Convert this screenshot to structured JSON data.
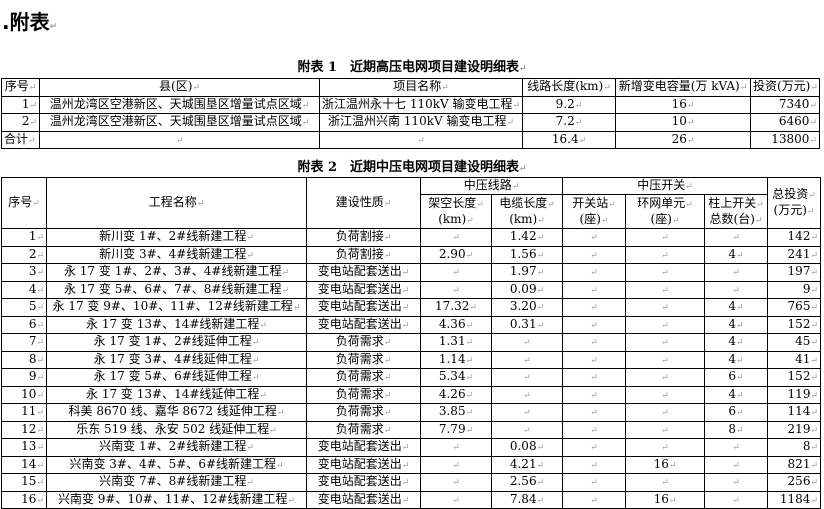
{
  "heading": ".附表",
  "table1": {
    "caption": "附表 1　近期高压电网项目建设明细表",
    "headers": [
      "序号",
      "县(区)",
      "项目名称",
      "线路长度(km)",
      "新增变电容量(万 kVA)",
      "投资(万元)"
    ],
    "rows": [
      [
        "1",
        "温州龙湾区空港新区、天城围垦区增量试点区域",
        "浙江温州永十七 110kV 输变电工程",
        "9.2",
        "16",
        "7340"
      ],
      [
        "2",
        "温州龙湾区空港新区、天城围垦区增量试点区域",
        "浙江温州兴南 110kV 输变电工程",
        "7.2",
        "10",
        "6460"
      ],
      [
        "合计",
        "",
        "",
        "16.4",
        "26",
        "13800"
      ]
    ]
  },
  "table2": {
    "caption": "附表 2　近期中压电网项目建设明细表",
    "headers": {
      "seq": "序号",
      "name": "工程名称",
      "nature": "建设性质",
      "line_group": "中压线路",
      "switch_group": "中压开关",
      "overhead": "架空长度",
      "overhead_unit": "(km)",
      "cable": "电缆长度",
      "cable_unit": "(km)",
      "station": "开关站",
      "station_unit": "(座)",
      "ring": "环网单元",
      "ring_unit": "(座)",
      "pole": "柱上开关",
      "pole_unit": "总数(台)",
      "total": "总投资",
      "total_unit": "(万元)"
    },
    "rows": [
      [
        "1",
        "新川变 1#、2#线新建工程",
        "负荷割接",
        "",
        "1.42",
        "",
        "",
        "",
        "142"
      ],
      [
        "2",
        "新川变 3#、4#线新建工程",
        "负荷割接",
        "2.90",
        "1.56",
        "",
        "",
        "4",
        "241"
      ],
      [
        "3",
        "永 17 变 1#、2#、3#、4#线新建工程",
        "变电站配套送出",
        "",
        "1.97",
        "",
        "",
        "",
        "197"
      ],
      [
        "4",
        "永 17 变 5#、6#、7#、8#线新建工程",
        "变电站配套送出",
        "",
        "0.09",
        "",
        "",
        "",
        "9"
      ],
      [
        "5",
        "永 17 变 9#、10#、11#、12#线新建工程",
        "变电站配套送出",
        "17.32",
        "3.20",
        "",
        "",
        "4",
        "765"
      ],
      [
        "6",
        "永 17 变 13#、14#线新建工程",
        "变电站配套送出",
        "4.36",
        "0.31",
        "",
        "",
        "4",
        "152"
      ],
      [
        "7",
        "永 17 变 1#、2#线延伸工程",
        "负荷需求",
        "1.31",
        "",
        "",
        "",
        "4",
        "45"
      ],
      [
        "8",
        "永 17 变 3#、4#线延伸工程",
        "负荷需求",
        "1.14",
        "",
        "",
        "",
        "4",
        "41"
      ],
      [
        "9",
        "永 17 变 5#、6#线延伸工程",
        "负荷需求",
        "5.34",
        "",
        "",
        "",
        "6",
        "152"
      ],
      [
        "10",
        "永 17 变 13#、14#线延伸工程",
        "负荷需求",
        "4.26",
        "",
        "",
        "",
        "4",
        "119"
      ],
      [
        "11",
        "科美 8670 线、嘉华 8672 线延伸工程",
        "负荷需求",
        "3.85",
        "",
        "",
        "",
        "6",
        "114"
      ],
      [
        "12",
        "乐东 519 线、永安 502 线延伸工程",
        "负荷需求",
        "7.79",
        "",
        "",
        "",
        "8",
        "219"
      ],
      [
        "13",
        "兴南变 1#、2#线新建工程",
        "变电站配套送出",
        "",
        "0.08",
        "",
        "",
        "",
        "8"
      ],
      [
        "14",
        "兴南变 3#、4#、5#、6#线新建工程",
        "变电站配套送出",
        "",
        "4.21",
        "",
        "16",
        "",
        "821"
      ],
      [
        "15",
        "兴南变 7#、8#线新建工程",
        "变电站配套送出",
        "",
        "2.56",
        "",
        "",
        "",
        "256"
      ],
      [
        "16",
        "兴南变 9#、10#、11#、12#线新建工程",
        "变电站配套送出",
        "",
        "7.84",
        "",
        "16",
        "",
        "1184"
      ]
    ]
  }
}
